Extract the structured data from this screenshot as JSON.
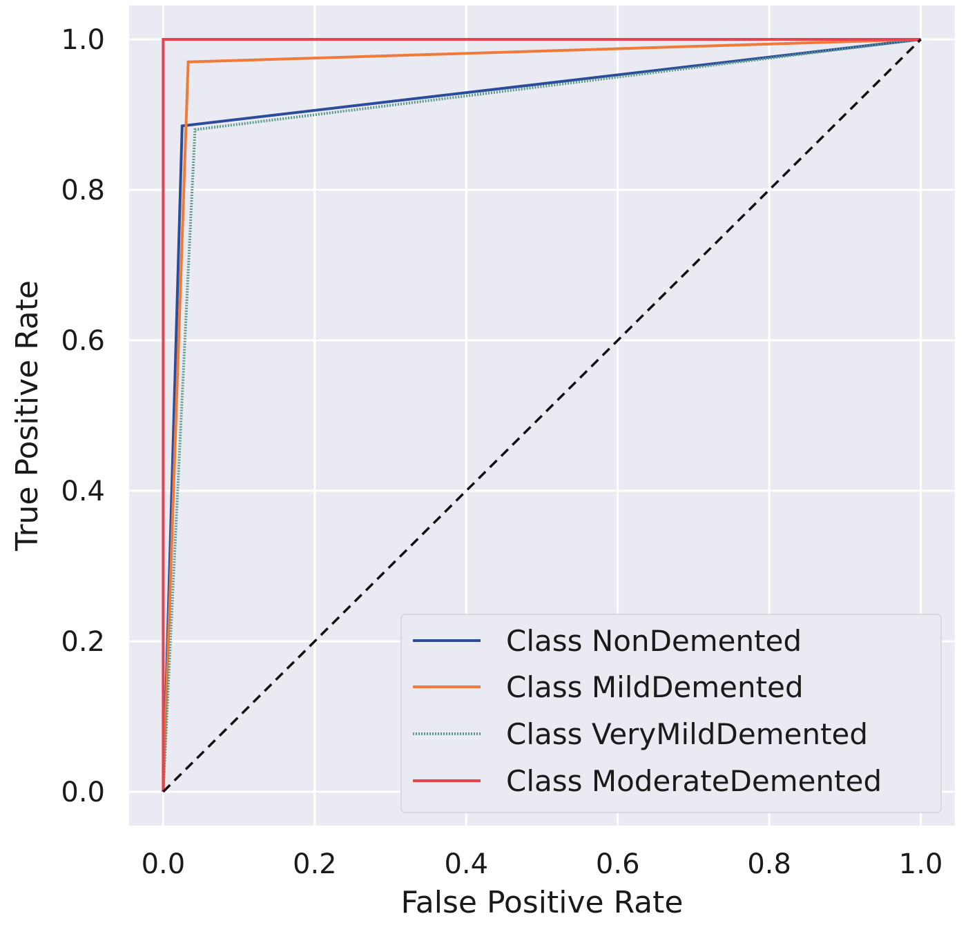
{
  "chart_data": {
    "type": "line",
    "title": "",
    "xlabel": "False Positive Rate",
    "ylabel": "True Positive Rate",
    "xlim": [
      -0.045,
      1.045
    ],
    "ylim": [
      -0.045,
      1.045
    ],
    "xticks": [
      "0.0",
      "0.2",
      "0.4",
      "0.6",
      "0.8",
      "1.0"
    ],
    "yticks": [
      "0.0",
      "0.2",
      "0.4",
      "0.6",
      "0.8",
      "1.0"
    ],
    "grid": true,
    "legend_position": "bottom-right",
    "series": [
      {
        "name": "Class NonDemented",
        "color": "#2b4b9b",
        "style": "solid",
        "x": [
          0.0,
          0.025,
          1.0
        ],
        "y": [
          0.0,
          0.885,
          1.0
        ]
      },
      {
        "name": "Class MildDemented",
        "color": "#f07a3a",
        "style": "solid",
        "x": [
          0.0,
          0.033,
          1.0
        ],
        "y": [
          0.0,
          0.97,
          1.0
        ]
      },
      {
        "name": "Class VeryMildDemented",
        "color": "#5a9a88",
        "style": "dotted",
        "x": [
          0.0,
          0.042,
          1.0
        ],
        "y": [
          0.0,
          0.88,
          1.0
        ]
      },
      {
        "name": "Class ModerateDemented",
        "color": "#e8424f",
        "style": "solid",
        "x": [
          0.0,
          0.0,
          1.0
        ],
        "y": [
          0.0,
          1.0,
          1.0
        ]
      }
    ],
    "reference_line": {
      "style": "dashed",
      "color": "#111111",
      "x": [
        0.0,
        1.0
      ],
      "y": [
        0.0,
        1.0
      ]
    }
  }
}
